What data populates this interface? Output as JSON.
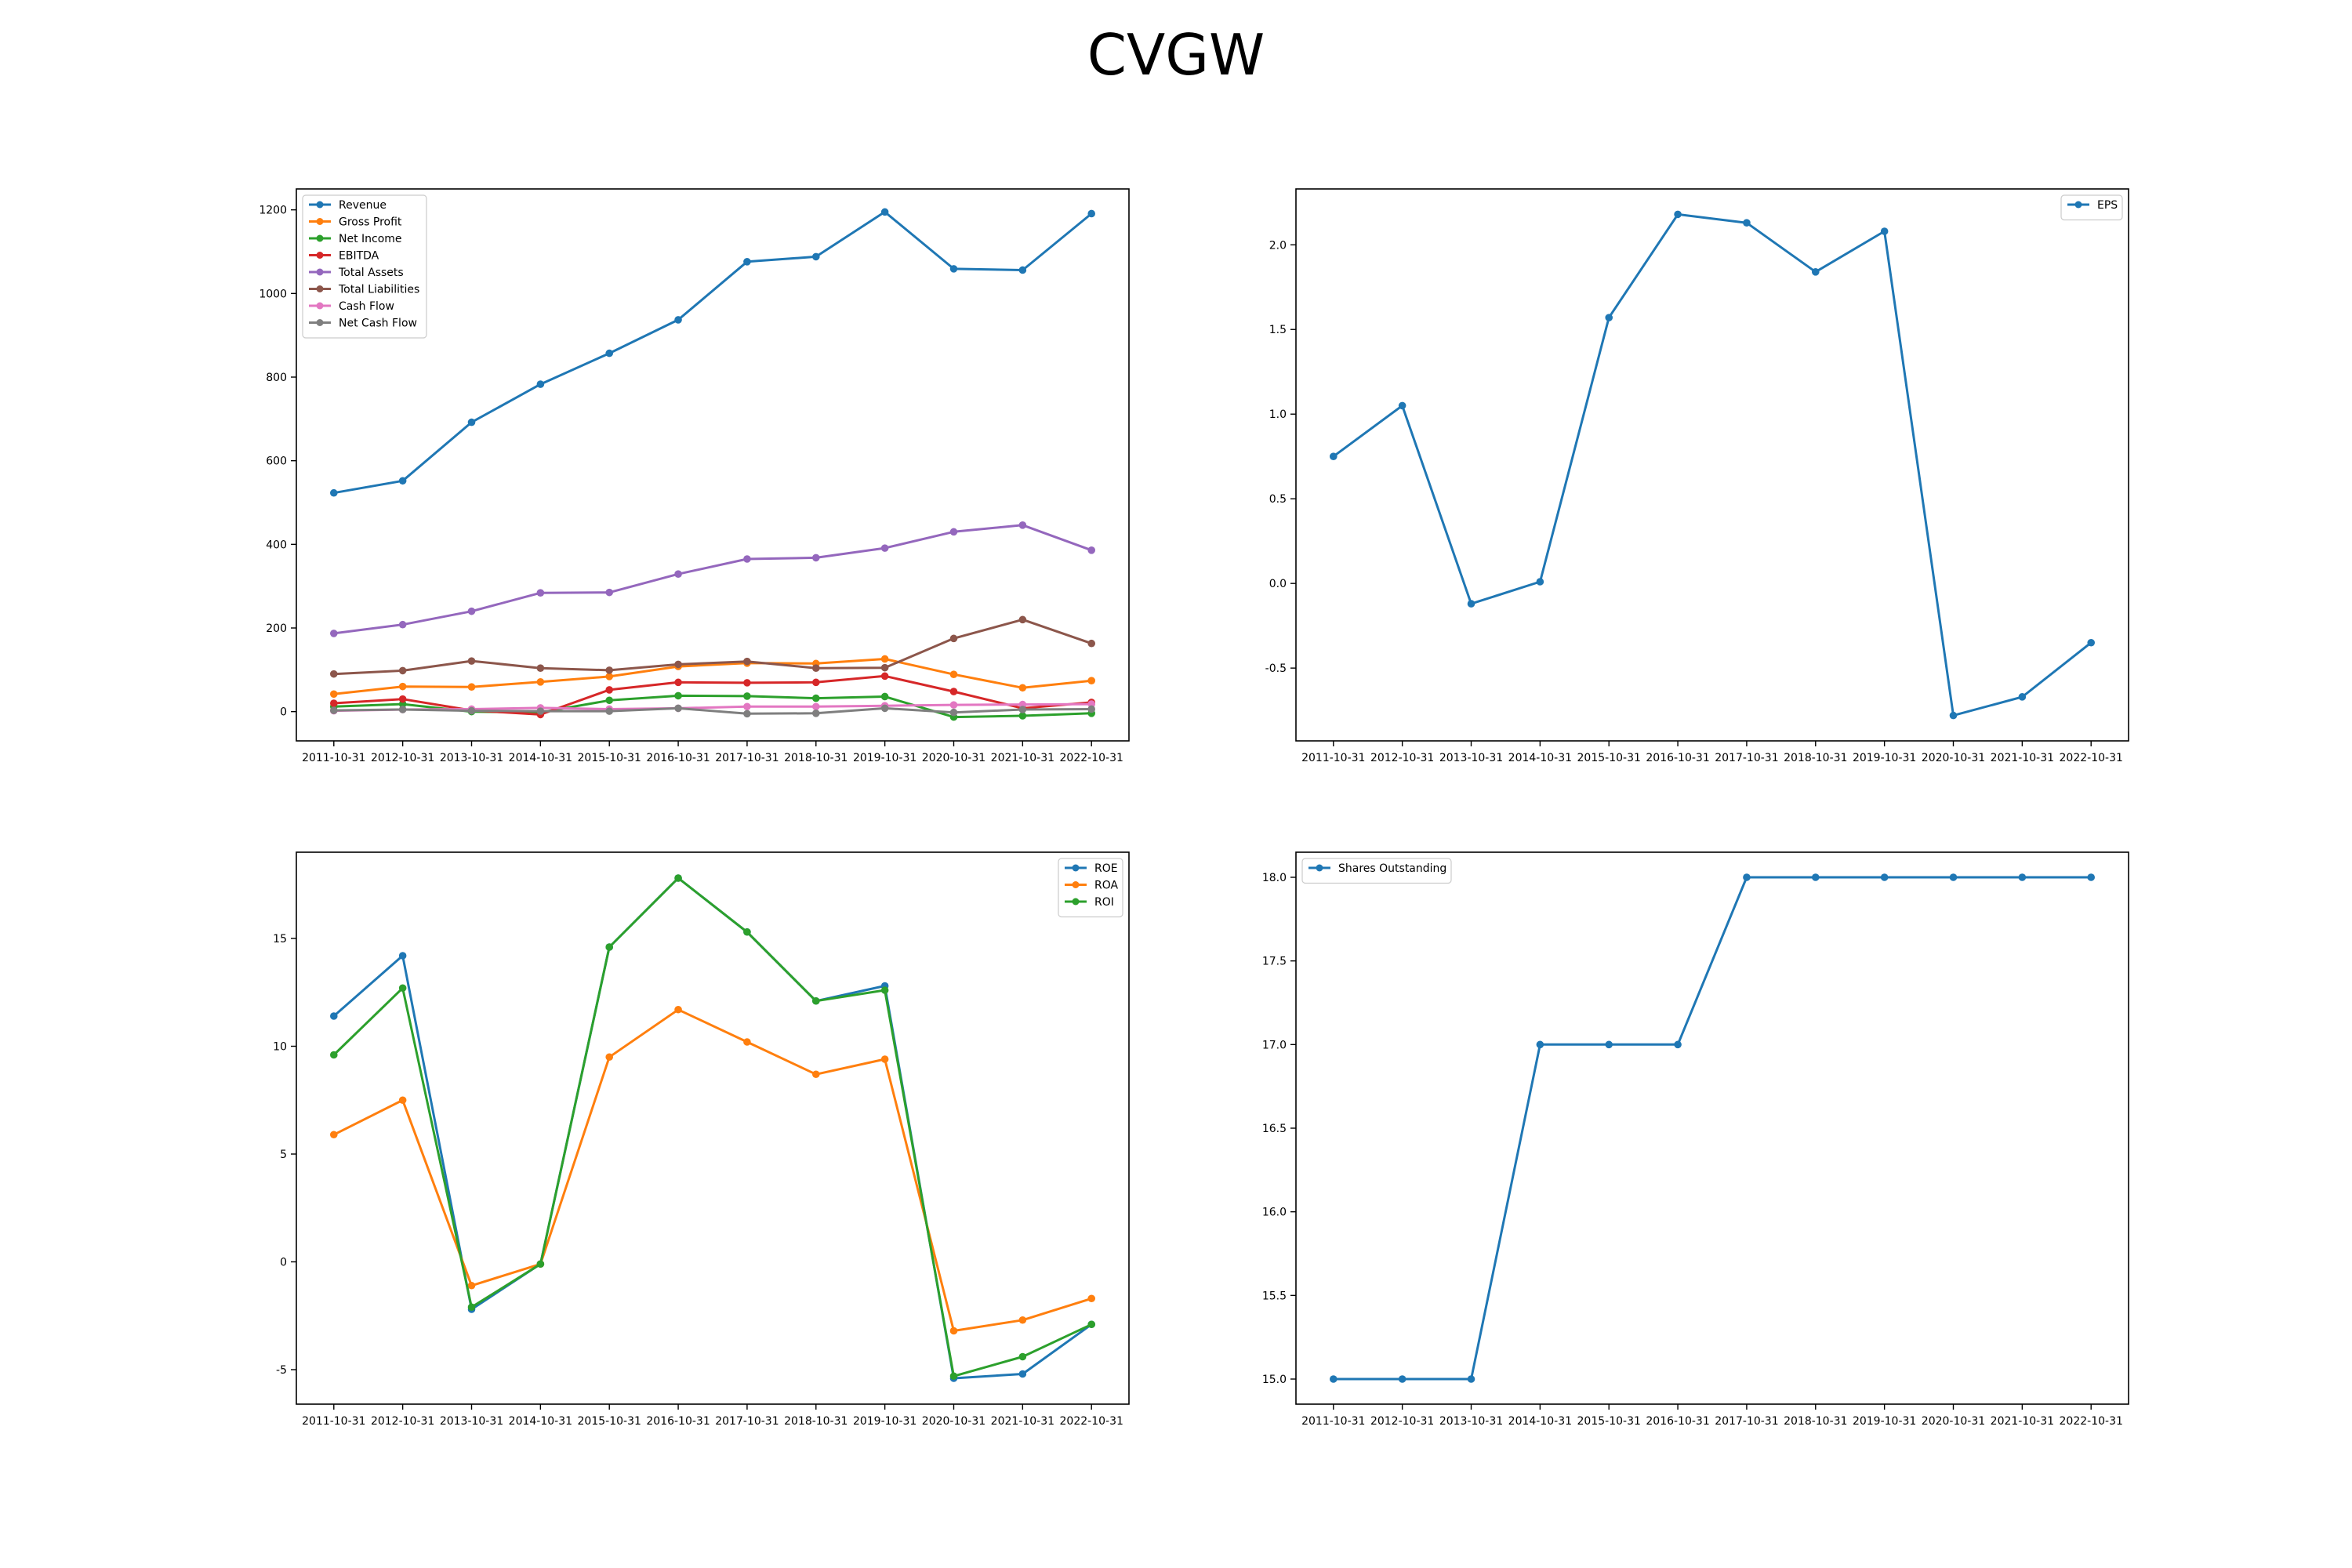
{
  "figure": {
    "title": "CVGW"
  },
  "chart_data": [
    {
      "type": "line",
      "x": [
        "2011-10-31",
        "2012-10-31",
        "2013-10-31",
        "2014-10-31",
        "2015-10-31",
        "2016-10-31",
        "2017-10-31",
        "2018-10-31",
        "2019-10-31",
        "2020-10-31",
        "2021-10-31",
        "2022-10-31"
      ],
      "ylim": [
        -70,
        1250
      ],
      "yticks": [
        0,
        200,
        400,
        600,
        800,
        1000,
        1200
      ],
      "legend": "top-left",
      "grid": false,
      "series": [
        {
          "name": "Revenue",
          "color": "#1f77b4",
          "values": [
            523,
            552,
            692,
            783,
            857,
            937,
            1076,
            1088,
            1195,
            1059,
            1056,
            1191
          ]
        },
        {
          "name": "Gross Profit",
          "color": "#ff7f0e",
          "values": [
            42,
            60,
            59,
            71,
            84,
            108,
            116,
            115,
            126,
            89,
            57,
            74
          ]
        },
        {
          "name": "Net Income",
          "color": "#2ca02c",
          "values": [
            12,
            18,
            0,
            -2,
            27,
            38,
            37,
            32,
            36,
            -13,
            -10,
            -4
          ]
        },
        {
          "name": "EBITDA",
          "color": "#d62728",
          "values": [
            20,
            30,
            3,
            -7,
            52,
            70,
            69,
            70,
            85,
            48,
            8,
            22
          ]
        },
        {
          "name": "Total Assets",
          "color": "#9467bd",
          "values": [
            187,
            208,
            240,
            284,
            285,
            329,
            365,
            368,
            391,
            430,
            446,
            386
          ]
        },
        {
          "name": "Total Liabilities",
          "color": "#8c564b",
          "values": [
            90,
            98,
            121,
            104,
            99,
            113,
            120,
            104,
            105,
            175,
            220,
            163
          ]
        },
        {
          "name": "Cash Flow",
          "color": "#e377c2",
          "values": [
            2,
            5,
            6,
            9,
            6,
            8,
            12,
            12,
            14,
            16,
            17,
            18
          ]
        },
        {
          "name": "Net Cash Flow",
          "color": "#7f7f7f",
          "values": [
            3,
            5,
            2,
            1,
            1,
            8,
            -5,
            -4,
            8,
            -2,
            5,
            6
          ]
        }
      ]
    },
    {
      "type": "line",
      "x": [
        "2011-10-31",
        "2012-10-31",
        "2013-10-31",
        "2014-10-31",
        "2015-10-31",
        "2016-10-31",
        "2017-10-31",
        "2018-10-31",
        "2019-10-31",
        "2020-10-31",
        "2021-10-31",
        "2022-10-31"
      ],
      "ylim": [
        -0.93,
        2.33
      ],
      "yticks": [
        -0.5,
        0.0,
        0.5,
        1.0,
        1.5,
        2.0
      ],
      "legend": "top-right",
      "grid": false,
      "series": [
        {
          "name": "EPS",
          "color": "#1f77b4",
          "values": [
            0.75,
            1.05,
            -0.12,
            0.01,
            1.57,
            2.18,
            2.13,
            1.84,
            2.08,
            -0.78,
            -0.67,
            -0.35
          ]
        }
      ]
    },
    {
      "type": "line",
      "x": [
        "2011-10-31",
        "2012-10-31",
        "2013-10-31",
        "2014-10-31",
        "2015-10-31",
        "2016-10-31",
        "2017-10-31",
        "2018-10-31",
        "2019-10-31",
        "2020-10-31",
        "2021-10-31",
        "2022-10-31"
      ],
      "ylim": [
        -6.6,
        19.0
      ],
      "yticks": [
        -5,
        0,
        5,
        10,
        15
      ],
      "legend": "top-right",
      "grid": false,
      "series": [
        {
          "name": "ROE",
          "color": "#1f77b4",
          "values": [
            11.4,
            14.2,
            -2.2,
            -0.1,
            14.6,
            17.8,
            15.3,
            12.1,
            12.8,
            -5.4,
            -5.2,
            -2.9
          ]
        },
        {
          "name": "ROA",
          "color": "#ff7f0e",
          "values": [
            5.9,
            7.5,
            -1.1,
            -0.1,
            9.5,
            11.7,
            10.2,
            8.7,
            9.4,
            -3.2,
            -2.7,
            -1.7
          ]
        },
        {
          "name": "ROI",
          "color": "#2ca02c",
          "values": [
            9.6,
            12.7,
            -2.1,
            -0.1,
            14.6,
            17.8,
            15.3,
            12.1,
            12.6,
            -5.3,
            -4.4,
            -2.9
          ]
        }
      ]
    },
    {
      "type": "line",
      "x": [
        "2011-10-31",
        "2012-10-31",
        "2013-10-31",
        "2014-10-31",
        "2015-10-31",
        "2016-10-31",
        "2017-10-31",
        "2018-10-31",
        "2019-10-31",
        "2020-10-31",
        "2021-10-31",
        "2022-10-31"
      ],
      "ylim": [
        14.85,
        18.15
      ],
      "yticks": [
        15.0,
        15.5,
        16.0,
        16.5,
        17.0,
        17.5,
        18.0
      ],
      "legend": "top-left",
      "grid": false,
      "series": [
        {
          "name": "Shares Outstanding",
          "color": "#1f77b4",
          "values": [
            15,
            15,
            15,
            17,
            17,
            17,
            18,
            18,
            18,
            18,
            18,
            18
          ]
        }
      ]
    }
  ]
}
